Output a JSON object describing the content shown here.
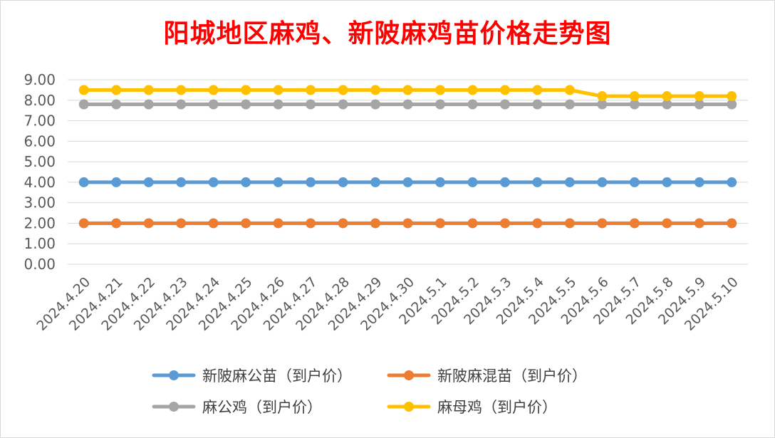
{
  "chart_data": {
    "type": "line",
    "title": "阳城地区麻鸡、新陂麻鸡苗价格走势图",
    "categories": [
      "2024.4.20",
      "2024.4.21",
      "2024.4.22",
      "2024.4.23",
      "2024.4.24",
      "2024.4.25",
      "2024.4.26",
      "2024.4.27",
      "2024.4.28",
      "2024.4.29",
      "2024.4.30",
      "2024.5.1",
      "2024.5.2",
      "2024.5.3",
      "2024.5.4",
      "2024.5.5",
      "2024.5.6",
      "2024.5.7",
      "2024.5.8",
      "2024.5.9",
      "2024.5.10"
    ],
    "ylim": [
      0,
      9
    ],
    "yticks": [
      "0.00",
      "1.00",
      "2.00",
      "3.00",
      "4.00",
      "5.00",
      "6.00",
      "7.00",
      "8.00",
      "9.00"
    ],
    "grid": true,
    "legend_position": "bottom",
    "series": [
      {
        "name": "新陂麻公苗（到户价）",
        "color": "#5b9bd5",
        "values": [
          4,
          4,
          4,
          4,
          4,
          4,
          4,
          4,
          4,
          4,
          4,
          4,
          4,
          4,
          4,
          4,
          4,
          4,
          4,
          4,
          4
        ]
      },
      {
        "name": "新陂麻混苗（到户价）",
        "color": "#ed7d31",
        "values": [
          2,
          2,
          2,
          2,
          2,
          2,
          2,
          2,
          2,
          2,
          2,
          2,
          2,
          2,
          2,
          2,
          2,
          2,
          2,
          2,
          2
        ]
      },
      {
        "name": "麻公鸡（到户价）",
        "color": "#a5a5a5",
        "values": [
          7.8,
          7.8,
          7.8,
          7.8,
          7.8,
          7.8,
          7.8,
          7.8,
          7.8,
          7.8,
          7.8,
          7.8,
          7.8,
          7.8,
          7.8,
          7.8,
          7.8,
          7.8,
          7.8,
          7.8,
          7.8
        ]
      },
      {
        "name": "麻母鸡（到户价）",
        "color": "#ffc000",
        "values": [
          8.5,
          8.5,
          8.5,
          8.5,
          8.5,
          8.5,
          8.5,
          8.5,
          8.5,
          8.5,
          8.5,
          8.5,
          8.5,
          8.5,
          8.5,
          8.5,
          8.2,
          8.2,
          8.2,
          8.2,
          8.2
        ]
      }
    ]
  }
}
